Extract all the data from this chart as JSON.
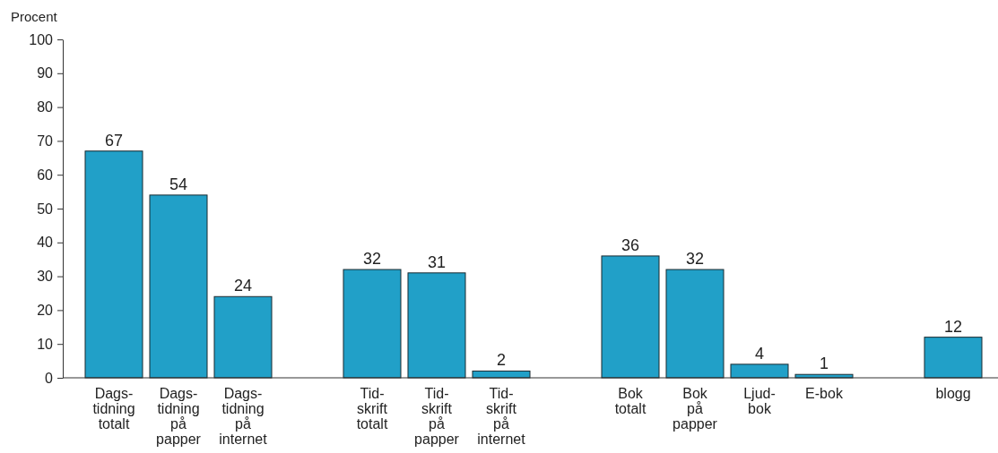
{
  "chart_data": {
    "type": "bar",
    "ylabel": "Procent",
    "categories": [
      "Dags- tidning totalt",
      "Dags- tidning på papper",
      "Dags- tidning på internet",
      null,
      "Tid- skrift totalt",
      "Tid- skrift på papper",
      "Tid- skrift på internet",
      null,
      "Bok totalt",
      "Bok på papper",
      "Ljud- bok",
      "E-bok",
      null,
      "blogg"
    ],
    "values": [
      67,
      54,
      24,
      null,
      32,
      31,
      2,
      null,
      36,
      32,
      4,
      1,
      null,
      12
    ],
    "color": "#21a0c8",
    "ylim": [
      0,
      100
    ],
    "yticks": [
      0,
      10,
      20,
      30,
      40,
      50,
      60,
      70,
      80,
      90,
      100
    ],
    "data_labels": true,
    "grid": false
  }
}
